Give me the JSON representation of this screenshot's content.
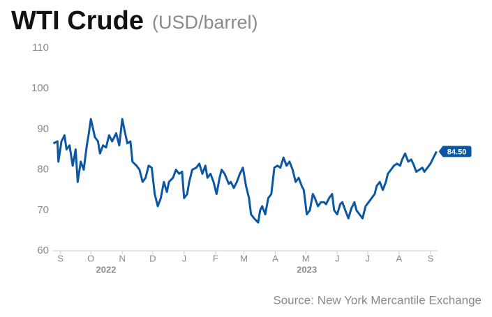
{
  "chart_data": {
    "type": "line",
    "title": "WTI Crude",
    "subtitle": "(USD/barrel)",
    "source": "Source: New York Mercantile Exchange",
    "end_label": "84.50",
    "x": [
      -7,
      -3,
      -2,
      1,
      4,
      6,
      9,
      12,
      15,
      17,
      20,
      23,
      26,
      28,
      30,
      34,
      37,
      39,
      42,
      45,
      48,
      51,
      55,
      58,
      61,
      63,
      66,
      69,
      71,
      75,
      78,
      81,
      84,
      87,
      90,
      93,
      96,
      99,
      102,
      105,
      107,
      111,
      114,
      117,
      120,
      122,
      125,
      127,
      130,
      134,
      137,
      140,
      143,
      145,
      148,
      151,
      154,
      157,
      159,
      162,
      166,
      168,
      171,
      174,
      177,
      180,
      183,
      186,
      188,
      191,
      195,
      197,
      199,
      202,
      205,
      208,
      211,
      214,
      217,
      220,
      223,
      226,
      229,
      232,
      235,
      238,
      240,
      243,
      246,
      249,
      251,
      254,
      257,
      260,
      262,
      265,
      268,
      270,
      273,
      276,
      278,
      281,
      284,
      287,
      290,
      292,
      295,
      298,
      301,
      304,
      307,
      310,
      312,
      315,
      318,
      321,
      323,
      326,
      329,
      332,
      335,
      337,
      340,
      343,
      346,
      348,
      351,
      354,
      357,
      359,
      362,
      365,
      368,
      371
    ],
    "series": [
      {
        "name": "WTI Crude",
        "color": "#0b57a4",
        "values": [
          86.5,
          87,
          82,
          87,
          88.5,
          85,
          86,
          81,
          85,
          77,
          82,
          80,
          86,
          89,
          92.5,
          88,
          87,
          84,
          86,
          85.5,
          88.5,
          87,
          89,
          86,
          92.5,
          90,
          86.5,
          87,
          82,
          81,
          80,
          77,
          78,
          81,
          80.5,
          74,
          71,
          73,
          77,
          74.5,
          77,
          78,
          80,
          79,
          79.5,
          73,
          74,
          77,
          80,
          80.5,
          81.5,
          79,
          81,
          78,
          79,
          77,
          74,
          78,
          80,
          79,
          76.5,
          77,
          75.5,
          77,
          79,
          80.5,
          76,
          73,
          69,
          68,
          67,
          70,
          71,
          69,
          73,
          74,
          80.5,
          81,
          80.5,
          83,
          81,
          82,
          80,
          77,
          78,
          76,
          75,
          69,
          70,
          74,
          73,
          71,
          72,
          72,
          71.5,
          73,
          74,
          70,
          69,
          71.5,
          72,
          70,
          68,
          70.5,
          72,
          70,
          69,
          68,
          71,
          72,
          73,
          74,
          76,
          77,
          75,
          77,
          79,
          80,
          81,
          81.5,
          81,
          82.5,
          84,
          82,
          82.5,
          81.5,
          79.5,
          80,
          80.5,
          79.5,
          80.5,
          81.5,
          83,
          84.5
        ]
      }
    ],
    "xlim": [
      -8,
      372
    ],
    "xticks": [
      {
        "value": 0,
        "label": "S"
      },
      {
        "value": 30,
        "label": "O"
      },
      {
        "value": 61,
        "label": "N"
      },
      {
        "value": 91,
        "label": "D"
      },
      {
        "value": 122,
        "label": "J"
      },
      {
        "value": 153,
        "label": "F"
      },
      {
        "value": 181,
        "label": "M"
      },
      {
        "value": 212,
        "label": "A"
      },
      {
        "value": 242,
        "label": "M"
      },
      {
        "value": 273,
        "label": "J"
      },
      {
        "value": 303,
        "label": "J"
      },
      {
        "value": 334,
        "label": "A"
      },
      {
        "value": 365,
        "label": "S"
      }
    ],
    "year_labels": [
      {
        "value": 45,
        "label": "2022"
      },
      {
        "value": 243,
        "label": "2023"
      }
    ],
    "ylim": [
      60,
      110
    ],
    "yticks": [
      60,
      70,
      80,
      90,
      100,
      110
    ],
    "grid": false
  }
}
